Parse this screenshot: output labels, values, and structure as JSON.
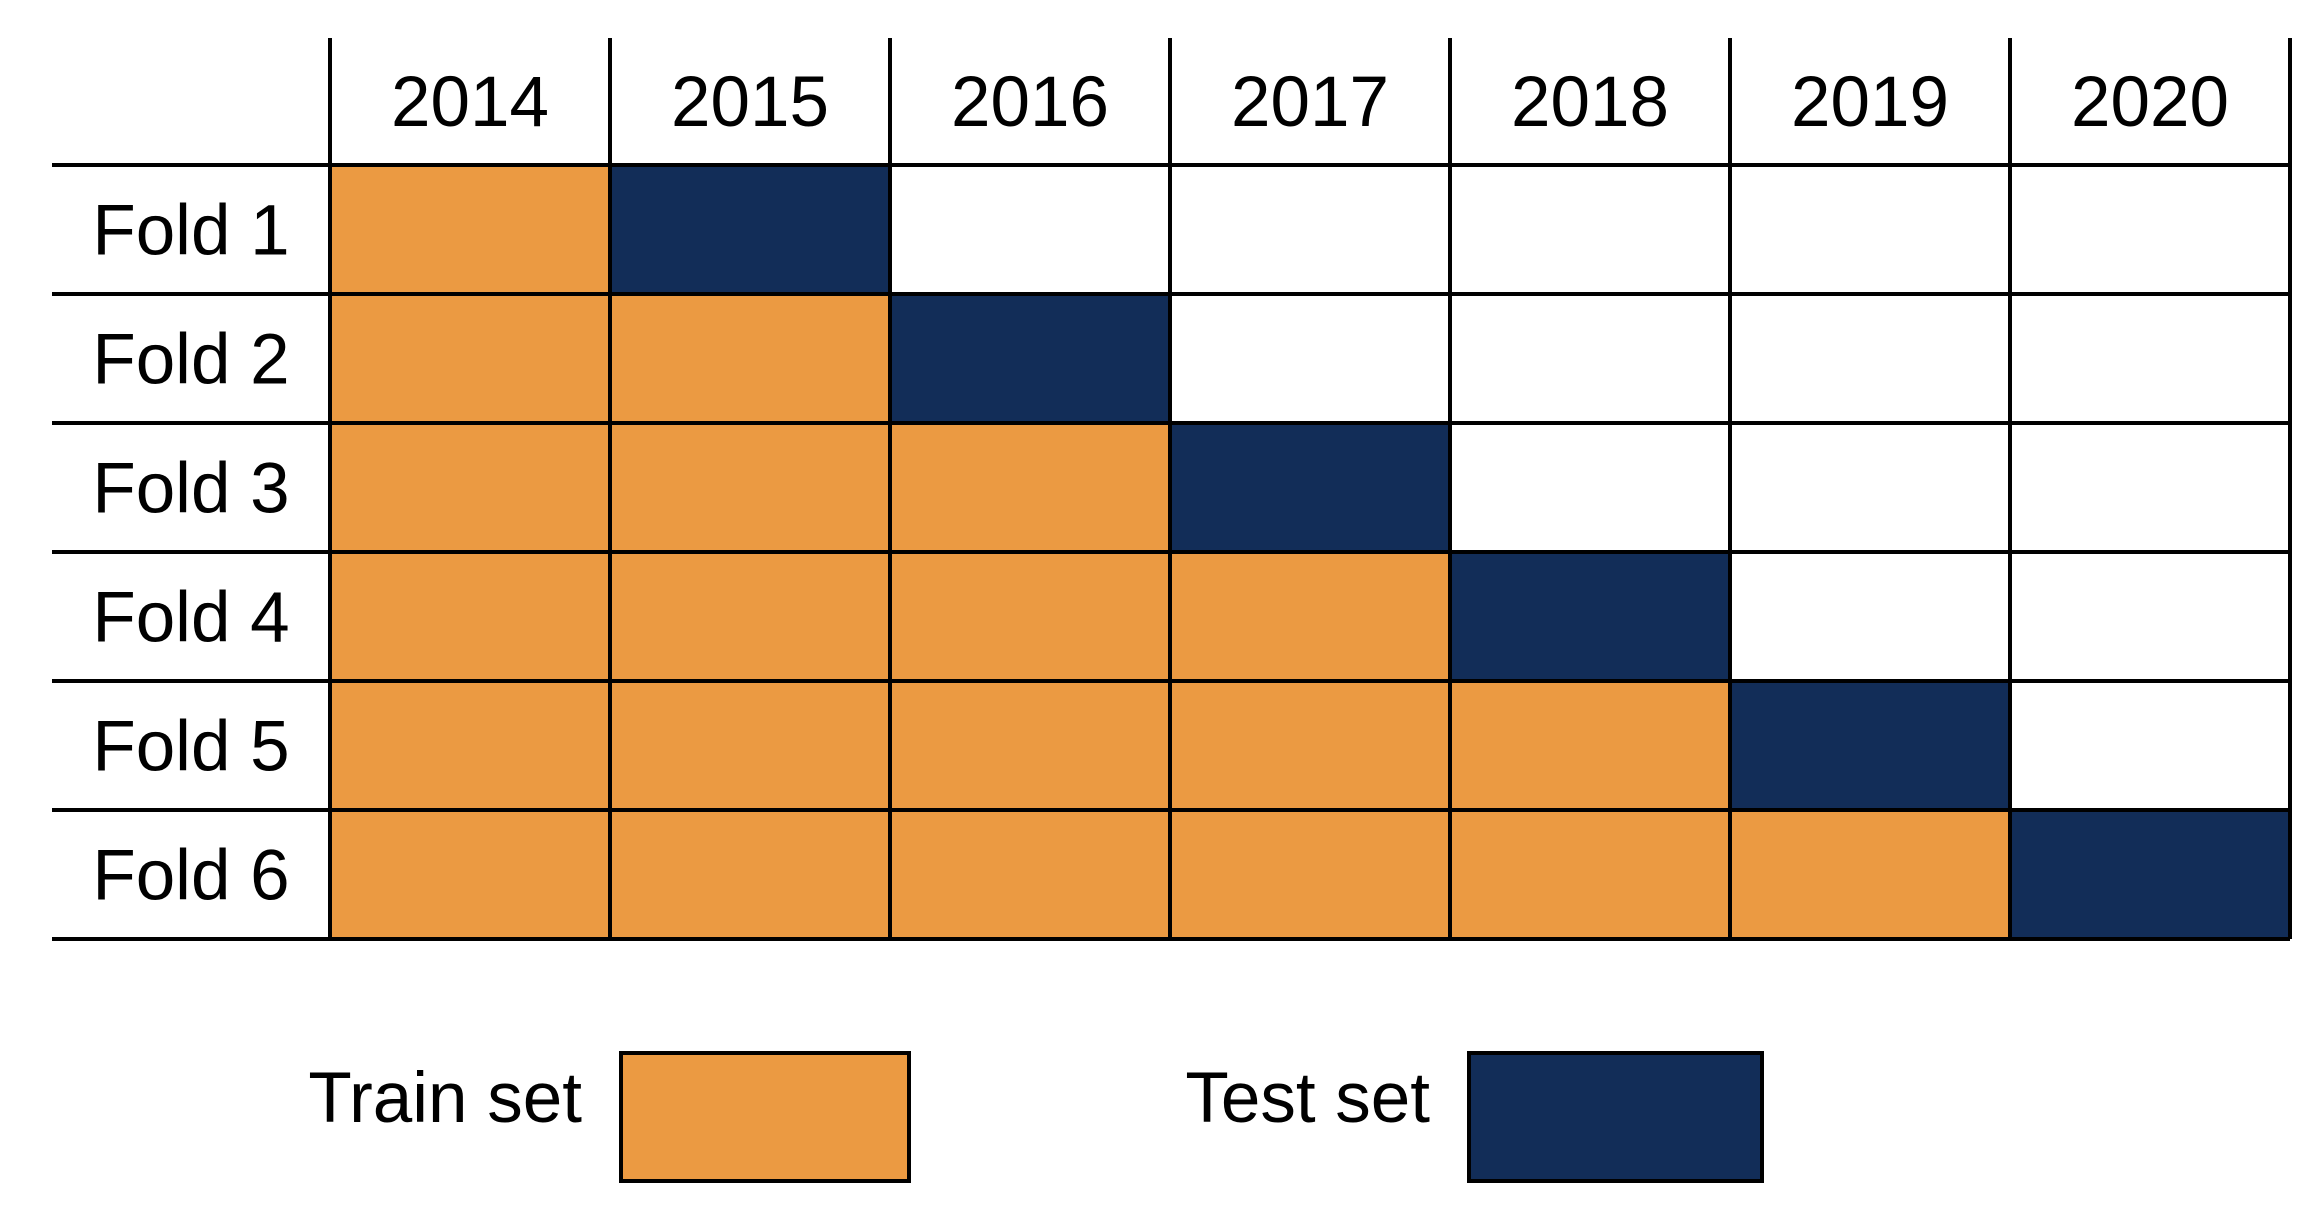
{
  "years": [
    "2014",
    "2015",
    "2016",
    "2017",
    "2018",
    "2019",
    "2020"
  ],
  "folds": [
    {
      "label": "Fold 1",
      "cells": [
        "train",
        "test",
        "",
        "",
        "",
        "",
        ""
      ]
    },
    {
      "label": "Fold 2",
      "cells": [
        "train",
        "train",
        "test",
        "",
        "",
        "",
        ""
      ]
    },
    {
      "label": "Fold 3",
      "cells": [
        "train",
        "train",
        "train",
        "test",
        "",
        "",
        ""
      ]
    },
    {
      "label": "Fold 4",
      "cells": [
        "train",
        "train",
        "train",
        "train",
        "test",
        "",
        ""
      ]
    },
    {
      "label": "Fold 5",
      "cells": [
        "train",
        "train",
        "train",
        "train",
        "train",
        "test",
        ""
      ]
    },
    {
      "label": "Fold 6",
      "cells": [
        "train",
        "train",
        "train",
        "train",
        "train",
        "train",
        "test"
      ]
    }
  ],
  "legend": {
    "train_label": "Train set",
    "test_label": "Test set"
  },
  "colors": {
    "train": "#EB9A42",
    "test": "#122D58",
    "empty": "#FFFFFF",
    "line": "#000000"
  }
}
